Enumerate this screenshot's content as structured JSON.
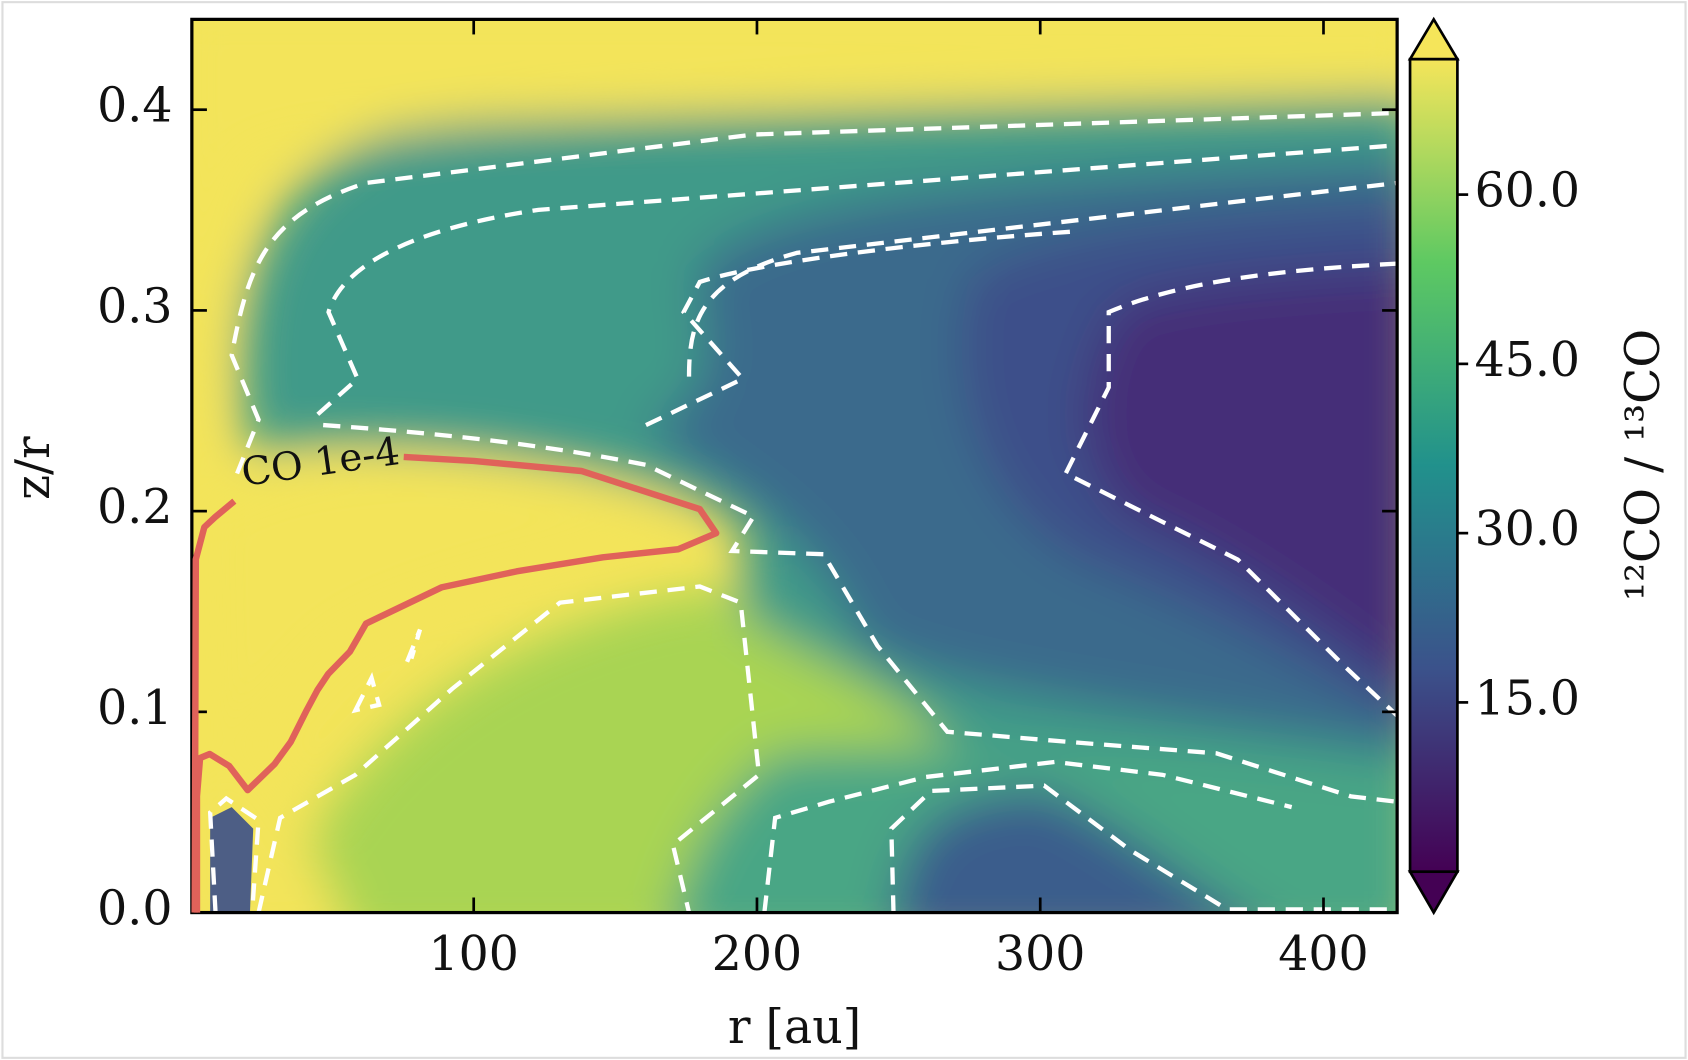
{
  "chart_data": {
    "type": "contour",
    "xlabel": "r [au]",
    "ylabel": "z/r",
    "colorbar_label": "¹²CO / ¹³CO",
    "xlim": [
      0.5,
      426
    ],
    "ylim": [
      0,
      0.445
    ],
    "xticks": [
      100,
      200,
      300,
      400
    ],
    "yticks": [
      {
        "value": 0,
        "label": "0.0"
      },
      0.1,
      0.2,
      0.3,
      0.4
    ],
    "clim": [
      0,
      72
    ],
    "cticks": [
      {
        "value": 15,
        "label": "15.0"
      },
      {
        "value": 30,
        "label": "30.0"
      },
      {
        "value": 45,
        "label": "45.0"
      },
      {
        "value": 60,
        "label": "60.0"
      }
    ],
    "colormap": [
      "#440154",
      "#3b528b",
      "#21918c",
      "#5ec962",
      "#f5e55a"
    ],
    "series": [
      {
        "name": "CO 1e-4",
        "color": "#e0625a",
        "x": [
          1.5,
          1.9,
          4.9,
          8.7,
          15.5,
          null,
          75.3,
          100,
          138,
          179.8,
          185.6,
          172.2,
          145.6,
          115.2,
          88.6,
          62,
          56.3,
          48.7,
          44.9,
          41.1,
          35.4,
          29.7,
          20.2,
          13.7,
          6.8,
          3.4,
          2.3,
          2.3
        ],
        "values": [
          0,
          0.176,
          0.192,
          0.197,
          0.205,
          null,
          0.227,
          0.225,
          0.22,
          0.201,
          0.189,
          0.181,
          0.177,
          0.17,
          0.162,
          0.144,
          0.13,
          0.119,
          0.111,
          0.101,
          0.085,
          0.074,
          0.061,
          0.073,
          0.079,
          0.077,
          0.058,
          0
        ]
      }
    ]
  }
}
